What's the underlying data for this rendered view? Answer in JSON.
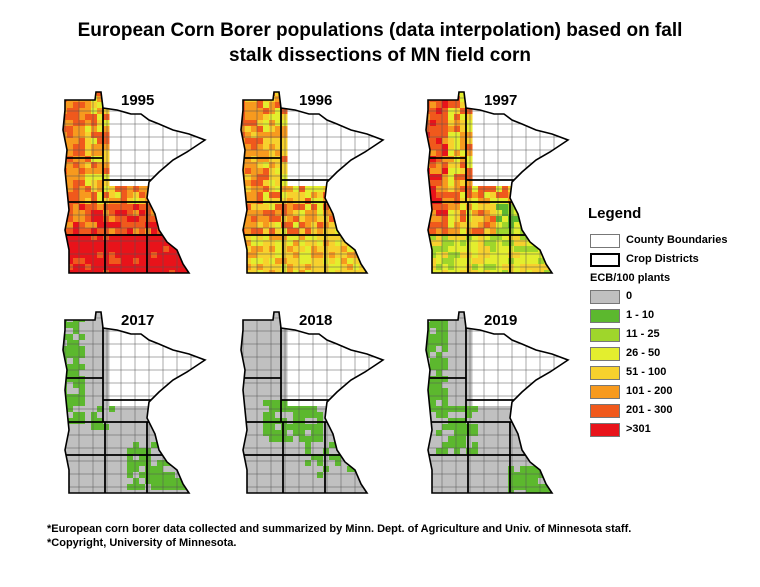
{
  "title": {
    "line1": "European Corn Borer populations (data interpolation) based on fall",
    "line2": "stalk dissections of MN field corn"
  },
  "maps": [
    {
      "year": "1995",
      "scheme": "high_south"
    },
    {
      "year": "1996",
      "scheme": "orange_mixed"
    },
    {
      "year": "1997",
      "scheme": "mixed_yellow"
    },
    {
      "year": "2017",
      "scheme": "gray_low_a"
    },
    {
      "year": "2018",
      "scheme": "gray_low_b"
    },
    {
      "year": "2019",
      "scheme": "gray_low_c"
    }
  ],
  "legend": {
    "title": "Legend",
    "county_boundaries": "County Boundaries",
    "crop_districts": "Crop Districts",
    "unit": "ECB/100 plants",
    "classes": [
      {
        "label": "0",
        "color": "#c0c0c0"
      },
      {
        "label": "1 - 10",
        "color": "#5cb82e"
      },
      {
        "label": "11 - 25",
        "color": "#9fd62b"
      },
      {
        "label": "26 - 50",
        "color": "#e3ee2e"
      },
      {
        "label": "51 - 100",
        "color": "#f7d12d"
      },
      {
        "label": "101 - 200",
        "color": "#f79a1e"
      },
      {
        "label": "201 - 300",
        "color": "#f0591c"
      },
      {
        "label": ">301",
        "color": "#e8131a"
      }
    ]
  },
  "footnotes": {
    "line1": "*European corn borer data collected and summarized by Minn. Dept. of Agriculture and Univ. of Minnesota staff.",
    "line2": "*Copyright, University of Minnesota."
  }
}
